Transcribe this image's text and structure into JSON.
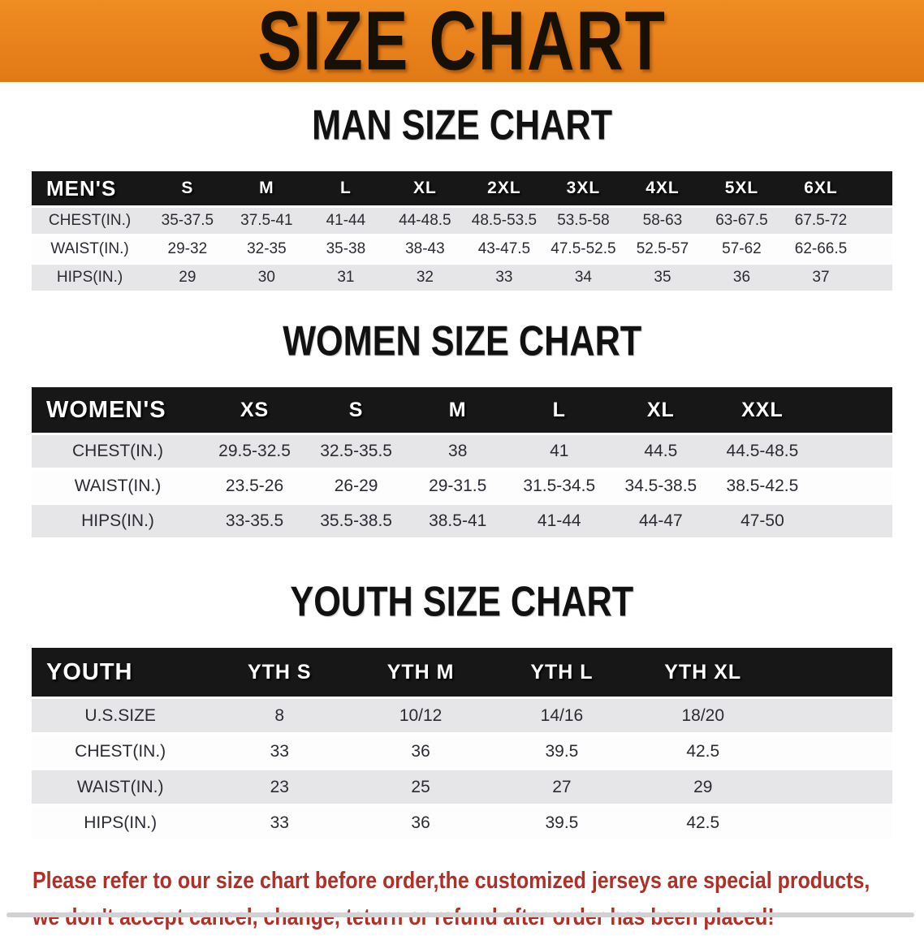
{
  "banner": {
    "title": "SIZE CHART",
    "bg_color": "#e8811b"
  },
  "colors": {
    "banner_orange": "#e8811b",
    "header_black": "#171717",
    "row_gray": "#e6e6e8",
    "row_white": "#fdfdfe",
    "notice_red": "#b03028"
  },
  "sections": [
    {
      "id": "men",
      "title": "MAN SIZE CHART",
      "table": {
        "header_label": "MEN'S",
        "columns": [
          "S",
          "M",
          "L",
          "XL",
          "2XL",
          "3XL",
          "4XL",
          "5XL",
          "6XL"
        ],
        "rows": [
          {
            "label": "CHEST(IN.)",
            "values": [
              "35-37.5",
              "37.5-41",
              "41-44",
              "44-48.5",
              "48.5-53.5",
              "53.5-58",
              "58-63",
              "63-67.5",
              "67.5-72"
            ]
          },
          {
            "label": "WAIST(IN.)",
            "values": [
              "29-32",
              "32-35",
              "35-38",
              "38-43",
              "43-47.5",
              "47.5-52.5",
              "52.5-57",
              "57-62",
              "62-66.5"
            ]
          },
          {
            "label": "HIPS(IN.)",
            "values": [
              "29",
              "30",
              "31",
              "32",
              "33",
              "34",
              "35",
              "36",
              "37"
            ]
          }
        ]
      }
    },
    {
      "id": "women",
      "title": "WOMEN SIZE CHART",
      "table": {
        "header_label": "WOMEN'S",
        "columns": [
          "XS",
          "S",
          "M",
          "L",
          "XL",
          "XXL"
        ],
        "rows": [
          {
            "label": "CHEST(IN.)",
            "values": [
              "29.5-32.5",
              "32.5-35.5",
              "38",
              "41",
              "44.5",
              "44.5-48.5"
            ]
          },
          {
            "label": "WAIST(IN.)",
            "values": [
              "23.5-26",
              "26-29",
              "29-31.5",
              "31.5-34.5",
              "34.5-38.5",
              "38.5-42.5"
            ]
          },
          {
            "label": "HIPS(IN.)",
            "values": [
              "33-35.5",
              "35.5-38.5",
              "38.5-41",
              "41-44",
              "44-47",
              "47-50"
            ]
          }
        ]
      }
    },
    {
      "id": "youth",
      "title": "YOUTH SIZE CHART",
      "table": {
        "header_label": "YOUTH",
        "columns": [
          "YTH S",
          "YTH M",
          "YTH L",
          "YTH XL"
        ],
        "rows": [
          {
            "label": "U.S.SIZE",
            "values": [
              "8",
              "10/12",
              "14/16",
              "18/20"
            ]
          },
          {
            "label": "CHEST(IN.)",
            "values": [
              "33",
              "36",
              "39.5",
              "42.5"
            ]
          },
          {
            "label": "WAIST(IN.)",
            "values": [
              "23",
              "25",
              "27",
              "29"
            ]
          },
          {
            "label": "HIPS(IN.)",
            "values": [
              "33",
              "36",
              "39.5",
              "42.5"
            ]
          }
        ]
      }
    }
  ],
  "notice": {
    "line1": "Please refer to our size chart before order,the customized jerseys are special products,",
    "line2": "we don't accept cancel, change, teturn or refund after order has been placed!"
  }
}
